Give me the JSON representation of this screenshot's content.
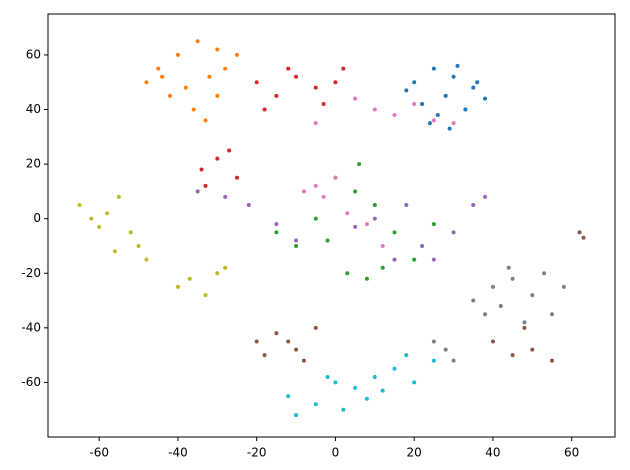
{
  "chart_data": {
    "type": "scatter",
    "xlim": [
      -73,
      71
    ],
    "ylim": [
      -80,
      75
    ],
    "xticks": [
      -60,
      -40,
      -20,
      0,
      20,
      40,
      60
    ],
    "yticks": [
      -60,
      -40,
      -20,
      0,
      20,
      40,
      60
    ],
    "series": [
      {
        "color": "#1f77b4",
        "x": [
          20,
          25,
          30,
          35,
          22,
          28,
          33,
          38,
          18,
          26,
          31,
          24,
          36,
          29
        ],
        "y": [
          50,
          55,
          52,
          48,
          42,
          45,
          40,
          44,
          47,
          38,
          56,
          35,
          50,
          33
        ]
      },
      {
        "color": "#ff7f0e",
        "x": [
          -45,
          -40,
          -35,
          -30,
          -25,
          -48,
          -38,
          -32,
          -42,
          -28,
          -36,
          -33,
          -44,
          -30
        ],
        "y": [
          55,
          60,
          65,
          62,
          60,
          50,
          48,
          52,
          45,
          55,
          40,
          36,
          52,
          45
        ]
      },
      {
        "color": "#2ca02c",
        "x": [
          0,
          5,
          10,
          -5,
          15,
          20,
          -10,
          3,
          8,
          12,
          -2,
          25,
          -15,
          6
        ],
        "y": [
          15,
          10,
          5,
          0,
          -5,
          -15,
          -10,
          -20,
          -22,
          -18,
          -8,
          -2,
          -5,
          20
        ]
      },
      {
        "color": "#d62728",
        "x": [
          -20,
          -15,
          -10,
          -5,
          0,
          -18,
          -12,
          -3,
          2,
          -30,
          -34,
          -27,
          -25,
          -33
        ],
        "y": [
          50,
          45,
          52,
          48,
          50,
          40,
          55,
          42,
          55,
          22,
          18,
          25,
          15,
          12
        ]
      },
      {
        "color": "#9467bd",
        "x": [
          -35,
          -28,
          -22,
          -15,
          10,
          18,
          22,
          30,
          35,
          38,
          15,
          5,
          -10,
          25
        ],
        "y": [
          10,
          8,
          5,
          -2,
          0,
          5,
          -10,
          -5,
          5,
          8,
          -15,
          -3,
          -8,
          -15
        ]
      },
      {
        "color": "#8c564b",
        "x": [
          -20,
          -15,
          -10,
          -5,
          -18,
          -8,
          -12,
          40,
          45,
          50,
          55,
          48,
          62,
          63
        ],
        "y": [
          -45,
          -42,
          -48,
          -40,
          -50,
          -52,
          -45,
          -45,
          -50,
          -48,
          -52,
          -40,
          -5,
          -7
        ]
      },
      {
        "color": "#e377c2",
        "x": [
          10,
          15,
          20,
          25,
          5,
          -5,
          0,
          -8,
          -3,
          3,
          8,
          -5,
          12,
          30
        ],
        "y": [
          40,
          38,
          42,
          36,
          44,
          12,
          15,
          10,
          8,
          2,
          -2,
          35,
          -10,
          35
        ]
      },
      {
        "color": "#7f7f7f",
        "x": [
          35,
          40,
          45,
          50,
          55,
          38,
          48,
          53,
          42,
          58,
          28,
          30,
          25,
          44
        ],
        "y": [
          -30,
          -25,
          -22,
          -28,
          -35,
          -35,
          -38,
          -20,
          -32,
          -25,
          -48,
          -52,
          -45,
          -18
        ]
      },
      {
        "color": "#bcbd22",
        "x": [
          -65,
          -62,
          -58,
          -55,
          -52,
          -50,
          -60,
          -56,
          -48,
          -40,
          -37,
          -33,
          -30,
          -28
        ],
        "y": [
          5,
          0,
          2,
          8,
          -5,
          -10,
          -3,
          -12,
          -15,
          -25,
          -22,
          -28,
          -20,
          -18
        ]
      },
      {
        "color": "#17becf",
        "x": [
          -12,
          -5,
          0,
          5,
          10,
          15,
          20,
          25,
          -10,
          2,
          8,
          18,
          -2,
          12
        ],
        "y": [
          -65,
          -68,
          -60,
          -62,
          -58,
          -55,
          -60,
          -52,
          -72,
          -70,
          -66,
          -50,
          -58,
          -63
        ]
      }
    ]
  }
}
